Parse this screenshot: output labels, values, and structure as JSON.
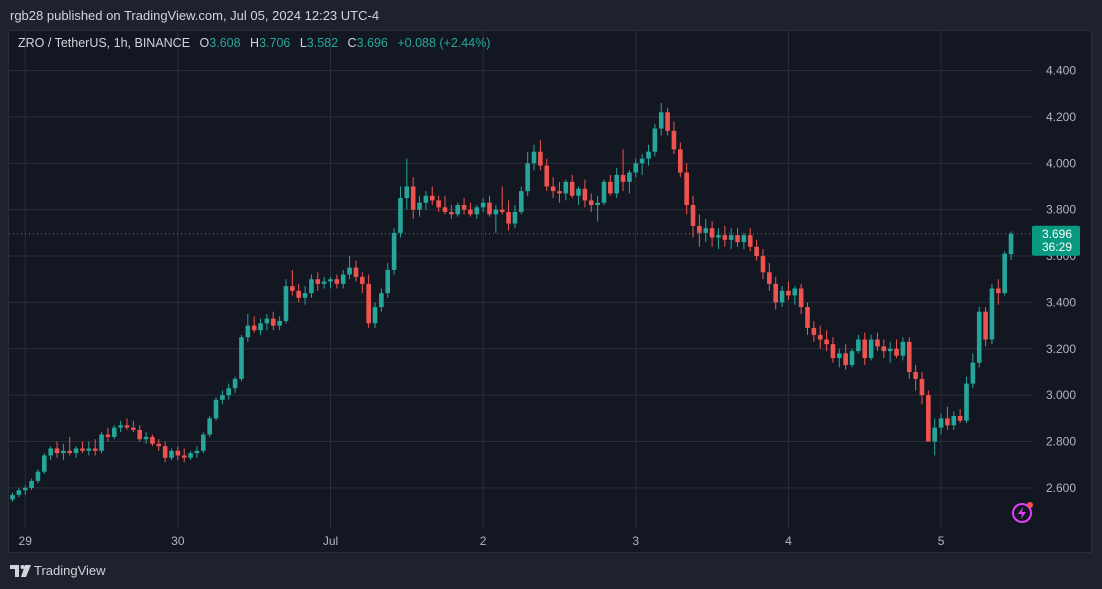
{
  "header": {
    "published_text": "rgb28 published on TradingView.com, Jul 05, 2024 12:23 UTC-4"
  },
  "legend": {
    "symbol": "ZRO / TetherUS, 1h, BINANCE",
    "o_label": "O",
    "o_value": "3.608",
    "h_label": "H",
    "h_value": "3.706",
    "l_label": "L",
    "l_value": "3.582",
    "c_label": "C",
    "c_value": "3.696",
    "change": "+0.088 (+2.44%)"
  },
  "price_tag": {
    "price": "3.696",
    "countdown": "36:29"
  },
  "footer": {
    "brand": "TradingView"
  },
  "colors": {
    "up": "#26a69a",
    "down": "#ef5350",
    "grid": "#2a2e39",
    "background": "#131722",
    "accent": "#089981"
  },
  "chart_data": {
    "type": "candlestick",
    "symbol": "ZRO / TetherUS",
    "interval": "1h",
    "exchange": "BINANCE",
    "ylim": [
      2.44,
      4.48
    ],
    "y_ticks": [
      2.6,
      2.8,
      3.0,
      3.2,
      3.4,
      3.6,
      3.8,
      4.0,
      4.2,
      4.4
    ],
    "y_tick_labels": [
      "2.600",
      "2.800",
      "3.000",
      "3.200",
      "3.400",
      "3.600",
      "3.800",
      "4.000",
      "4.200",
      "4.400"
    ],
    "x_ticks": [
      {
        "label": "29",
        "index": 2
      },
      {
        "label": "30",
        "index": 26
      },
      {
        "label": "Jul",
        "index": 50
      },
      {
        "label": "2",
        "index": 74
      },
      {
        "label": "3",
        "index": 98
      },
      {
        "label": "4",
        "index": 122
      },
      {
        "label": "5",
        "index": 146
      }
    ],
    "last_price": 3.696,
    "grid": true,
    "candles": [
      [
        2.55,
        2.58,
        2.54,
        2.57
      ],
      [
        2.57,
        2.6,
        2.56,
        2.59
      ],
      [
        2.59,
        2.61,
        2.57,
        2.6
      ],
      [
        2.6,
        2.64,
        2.59,
        2.63
      ],
      [
        2.63,
        2.68,
        2.62,
        2.67
      ],
      [
        2.67,
        2.75,
        2.66,
        2.74
      ],
      [
        2.74,
        2.78,
        2.72,
        2.77
      ],
      [
        2.77,
        2.8,
        2.73,
        2.75
      ],
      [
        2.75,
        2.79,
        2.72,
        2.76
      ],
      [
        2.76,
        2.82,
        2.74,
        2.75
      ],
      [
        2.75,
        2.78,
        2.73,
        2.77
      ],
      [
        2.77,
        2.8,
        2.75,
        2.76
      ],
      [
        2.76,
        2.8,
        2.74,
        2.77
      ],
      [
        2.77,
        2.81,
        2.74,
        2.76
      ],
      [
        2.76,
        2.84,
        2.75,
        2.83
      ],
      [
        2.83,
        2.86,
        2.8,
        2.82
      ],
      [
        2.82,
        2.87,
        2.81,
        2.86
      ],
      [
        2.86,
        2.89,
        2.84,
        2.87
      ],
      [
        2.87,
        2.9,
        2.85,
        2.86
      ],
      [
        2.86,
        2.89,
        2.84,
        2.85
      ],
      [
        2.85,
        2.87,
        2.8,
        2.81
      ],
      [
        2.81,
        2.84,
        2.79,
        2.82
      ],
      [
        2.82,
        2.83,
        2.78,
        2.79
      ],
      [
        2.79,
        2.81,
        2.76,
        2.78
      ],
      [
        2.78,
        2.8,
        2.71,
        2.73
      ],
      [
        2.73,
        2.77,
        2.72,
        2.76
      ],
      [
        2.76,
        2.78,
        2.72,
        2.74
      ],
      [
        2.74,
        2.77,
        2.71,
        2.73
      ],
      [
        2.73,
        2.76,
        2.72,
        2.75
      ],
      [
        2.75,
        2.78,
        2.73,
        2.76
      ],
      [
        2.76,
        2.84,
        2.75,
        2.83
      ],
      [
        2.83,
        2.91,
        2.82,
        2.9
      ],
      [
        2.9,
        2.99,
        2.89,
        2.98
      ],
      [
        2.98,
        3.02,
        2.96,
        3.0
      ],
      [
        3.0,
        3.05,
        2.98,
        3.03
      ],
      [
        3.03,
        3.08,
        3.01,
        3.07
      ],
      [
        3.07,
        3.26,
        3.06,
        3.25
      ],
      [
        3.25,
        3.35,
        3.23,
        3.3
      ],
      [
        3.3,
        3.34,
        3.27,
        3.28
      ],
      [
        3.28,
        3.33,
        3.26,
        3.31
      ],
      [
        3.31,
        3.35,
        3.28,
        3.33
      ],
      [
        3.33,
        3.36,
        3.28,
        3.3
      ],
      [
        3.3,
        3.34,
        3.28,
        3.32
      ],
      [
        3.32,
        3.5,
        3.31,
        3.47
      ],
      [
        3.47,
        3.54,
        3.43,
        3.45
      ],
      [
        3.45,
        3.48,
        3.4,
        3.42
      ],
      [
        3.42,
        3.47,
        3.39,
        3.44
      ],
      [
        3.44,
        3.52,
        3.42,
        3.5
      ],
      [
        3.5,
        3.53,
        3.45,
        3.48
      ],
      [
        3.48,
        3.51,
        3.46,
        3.49
      ],
      [
        3.49,
        3.51,
        3.46,
        3.5
      ],
      [
        3.5,
        3.52,
        3.46,
        3.48
      ],
      [
        3.48,
        3.54,
        3.46,
        3.52
      ],
      [
        3.52,
        3.6,
        3.5,
        3.55
      ],
      [
        3.55,
        3.58,
        3.49,
        3.51
      ],
      [
        3.51,
        3.53,
        3.44,
        3.48
      ],
      [
        3.48,
        3.52,
        3.29,
        3.31
      ],
      [
        3.31,
        3.4,
        3.29,
        3.38
      ],
      [
        3.38,
        3.46,
        3.36,
        3.44
      ],
      [
        3.44,
        3.57,
        3.42,
        3.54
      ],
      [
        3.54,
        3.72,
        3.52,
        3.7
      ],
      [
        3.7,
        3.9,
        3.68,
        3.85
      ],
      [
        3.85,
        4.02,
        3.8,
        3.9
      ],
      [
        3.9,
        3.94,
        3.76,
        3.8
      ],
      [
        3.8,
        3.86,
        3.77,
        3.83
      ],
      [
        3.83,
        3.88,
        3.8,
        3.86
      ],
      [
        3.86,
        3.9,
        3.82,
        3.84
      ],
      [
        3.84,
        3.86,
        3.79,
        3.81
      ],
      [
        3.81,
        3.86,
        3.78,
        3.79
      ],
      [
        3.79,
        3.82,
        3.76,
        3.78
      ],
      [
        3.78,
        3.83,
        3.77,
        3.82
      ],
      [
        3.82,
        3.85,
        3.78,
        3.8
      ],
      [
        3.8,
        3.83,
        3.77,
        3.78
      ],
      [
        3.78,
        3.82,
        3.76,
        3.81
      ],
      [
        3.81,
        3.85,
        3.79,
        3.83
      ],
      [
        3.83,
        3.86,
        3.77,
        3.78
      ],
      [
        3.78,
        3.82,
        3.7,
        3.8
      ],
      [
        3.8,
        3.9,
        3.78,
        3.79
      ],
      [
        3.79,
        3.84,
        3.71,
        3.74
      ],
      [
        3.74,
        3.82,
        3.72,
        3.79
      ],
      [
        3.79,
        3.9,
        3.78,
        3.88
      ],
      [
        3.88,
        4.05,
        3.86,
        4.0
      ],
      [
        4.0,
        4.08,
        3.97,
        4.05
      ],
      [
        4.05,
        4.1,
        3.97,
        3.99
      ],
      [
        3.99,
        4.02,
        3.88,
        3.9
      ],
      [
        3.9,
        3.94,
        3.85,
        3.88
      ],
      [
        3.88,
        3.92,
        3.83,
        3.87
      ],
      [
        3.87,
        3.93,
        3.84,
        3.92
      ],
      [
        3.92,
        3.95,
        3.85,
        3.86
      ],
      [
        3.86,
        3.9,
        3.82,
        3.89
      ],
      [
        3.89,
        3.93,
        3.81,
        3.84
      ],
      [
        3.84,
        3.87,
        3.79,
        3.82
      ],
      [
        3.82,
        3.86,
        3.75,
        3.83
      ],
      [
        3.83,
        3.93,
        3.82,
        3.92
      ],
      [
        3.92,
        3.95,
        3.86,
        3.87
      ],
      [
        3.87,
        3.98,
        3.85,
        3.95
      ],
      [
        3.95,
        4.06,
        3.88,
        3.92
      ],
      [
        3.92,
        3.97,
        3.87,
        3.96
      ],
      [
        3.96,
        4.02,
        3.94,
        4.0
      ],
      [
        4.0,
        4.04,
        3.95,
        4.02
      ],
      [
        4.02,
        4.08,
        3.99,
        4.05
      ],
      [
        4.05,
        4.17,
        4.03,
        4.15
      ],
      [
        4.15,
        4.26,
        4.12,
        4.22
      ],
      [
        4.22,
        4.24,
        4.12,
        4.14
      ],
      [
        4.14,
        4.18,
        4.04,
        4.06
      ],
      [
        4.06,
        4.09,
        3.94,
        3.96
      ],
      [
        3.96,
        4.0,
        3.78,
        3.82
      ],
      [
        3.82,
        3.86,
        3.68,
        3.73
      ],
      [
        3.73,
        3.78,
        3.64,
        3.7
      ],
      [
        3.7,
        3.76,
        3.66,
        3.72
      ],
      [
        3.72,
        3.75,
        3.64,
        3.68
      ],
      [
        3.68,
        3.72,
        3.63,
        3.69
      ],
      [
        3.69,
        3.73,
        3.64,
        3.67
      ],
      [
        3.67,
        3.72,
        3.63,
        3.69
      ],
      [
        3.69,
        3.72,
        3.64,
        3.66
      ],
      [
        3.66,
        3.7,
        3.63,
        3.69
      ],
      [
        3.69,
        3.72,
        3.62,
        3.64
      ],
      [
        3.64,
        3.67,
        3.58,
        3.6
      ],
      [
        3.6,
        3.63,
        3.5,
        3.53
      ],
      [
        3.53,
        3.57,
        3.45,
        3.48
      ],
      [
        3.48,
        3.51,
        3.37,
        3.4
      ],
      [
        3.4,
        3.47,
        3.38,
        3.45
      ],
      [
        3.45,
        3.49,
        3.41,
        3.43
      ],
      [
        3.43,
        3.47,
        3.39,
        3.46
      ],
      [
        3.46,
        3.48,
        3.35,
        3.38
      ],
      [
        3.38,
        3.4,
        3.26,
        3.29
      ],
      [
        3.29,
        3.32,
        3.23,
        3.26
      ],
      [
        3.26,
        3.3,
        3.2,
        3.24
      ],
      [
        3.24,
        3.28,
        3.19,
        3.22
      ],
      [
        3.22,
        3.25,
        3.14,
        3.16
      ],
      [
        3.16,
        3.2,
        3.12,
        3.18
      ],
      [
        3.18,
        3.22,
        3.11,
        3.13
      ],
      [
        3.13,
        3.2,
        3.12,
        3.19
      ],
      [
        3.19,
        3.26,
        3.18,
        3.24
      ],
      [
        3.24,
        3.27,
        3.13,
        3.16
      ],
      [
        3.16,
        3.26,
        3.15,
        3.24
      ],
      [
        3.24,
        3.27,
        3.19,
        3.21
      ],
      [
        3.21,
        3.24,
        3.16,
        3.19
      ],
      [
        3.19,
        3.23,
        3.14,
        3.2
      ],
      [
        3.2,
        3.24,
        3.16,
        3.17
      ],
      [
        3.17,
        3.25,
        3.15,
        3.23
      ],
      [
        3.23,
        3.25,
        3.07,
        3.1
      ],
      [
        3.1,
        3.13,
        3.02,
        3.07
      ],
      [
        3.07,
        3.1,
        2.96,
        3.0
      ],
      [
        3.0,
        3.02,
        2.8,
        2.8
      ],
      [
        2.8,
        2.9,
        2.74,
        2.86
      ],
      [
        2.86,
        2.92,
        2.83,
        2.9
      ],
      [
        2.9,
        2.95,
        2.85,
        2.87
      ],
      [
        2.87,
        2.93,
        2.85,
        2.91
      ],
      [
        2.91,
        2.94,
        2.88,
        2.89
      ],
      [
        2.89,
        3.08,
        2.88,
        3.05
      ],
      [
        3.05,
        3.18,
        3.03,
        3.14
      ],
      [
        3.14,
        3.38,
        3.12,
        3.36
      ],
      [
        3.36,
        3.38,
        3.21,
        3.24
      ],
      [
        3.24,
        3.48,
        3.22,
        3.46
      ],
      [
        3.46,
        3.5,
        3.39,
        3.44
      ],
      [
        3.44,
        3.62,
        3.43,
        3.61
      ],
      [
        3.608,
        3.706,
        3.582,
        3.696
      ]
    ]
  }
}
